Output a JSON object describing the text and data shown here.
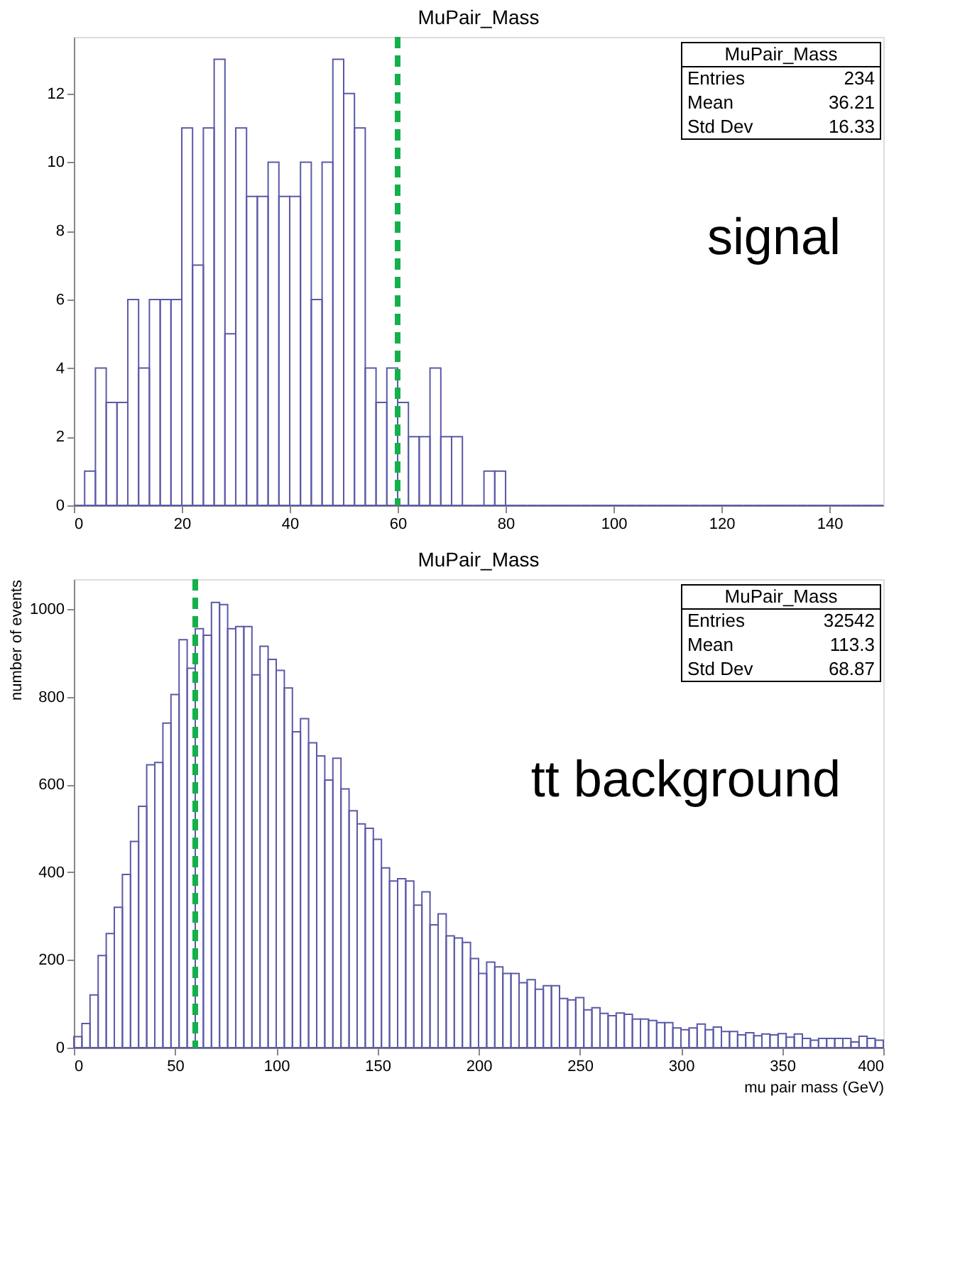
{
  "chart_data": [
    {
      "type": "histogram",
      "title": "MuPair_Mass",
      "color": "#5a5aa8",
      "bins": [
        0,
        2,
        4,
        6,
        8,
        10,
        12,
        14,
        16,
        18,
        20,
        22,
        24,
        26,
        28,
        30,
        32,
        34,
        36,
        38,
        40,
        42,
        44,
        46,
        48,
        50,
        52,
        54,
        56,
        58,
        60,
        62,
        64,
        66,
        68,
        70,
        72,
        74,
        76,
        78,
        80,
        82,
        84,
        86,
        88,
        90,
        92,
        94,
        96,
        98,
        100,
        102,
        104,
        106,
        108,
        110,
        112,
        114,
        116,
        118,
        120,
        122,
        124,
        126,
        128,
        130,
        132,
        134,
        136,
        138,
        140,
        142,
        144,
        146,
        148,
        150
      ],
      "values": [
        0,
        1,
        4,
        3,
        3,
        6,
        4,
        6,
        6,
        6,
        11,
        7,
        11,
        13,
        5,
        11,
        9,
        9,
        10,
        9,
        9,
        10,
        6,
        10,
        13,
        12,
        11,
        4,
        3,
        4,
        3,
        2,
        2,
        4,
        2,
        2,
        0,
        0,
        1,
        1,
        0,
        0,
        0,
        0,
        0,
        0,
        0,
        0,
        0,
        0,
        0,
        0,
        0,
        0,
        0,
        0,
        0,
        0,
        0,
        0,
        0,
        0,
        0,
        0,
        0,
        0,
        0,
        0,
        0,
        0,
        0,
        0,
        0,
        0,
        0
      ],
      "xlim": [
        0,
        150
      ],
      "ylim": [
        0,
        13.65
      ],
      "xticks": [
        0,
        20,
        40,
        60,
        80,
        100,
        120,
        140
      ],
      "yticks": [
        0,
        2,
        4,
        6,
        8,
        10,
        12
      ],
      "ref_lines": [
        {
          "axis": "x",
          "value": 60,
          "color": "#14b04a",
          "line_style": "dashed"
        }
      ],
      "annotations": [
        "signal",
        "MuPair_Mass",
        "Entries",
        "234",
        "Mean",
        "36.21",
        "Std Dev",
        "16.33"
      ]
    },
    {
      "type": "histogram",
      "title": "MuPair_Mass",
      "color": "#5a5aa8",
      "xlabel": "mu pair mass (GeV)",
      "ylabel": "number of events",
      "bins": [
        0,
        4,
        8,
        12,
        16,
        20,
        24,
        28,
        32,
        36,
        40,
        44,
        48,
        52,
        56,
        60,
        64,
        68,
        72,
        76,
        80,
        84,
        88,
        92,
        96,
        100,
        104,
        108,
        112,
        116,
        120,
        124,
        128,
        132,
        136,
        140,
        144,
        148,
        152,
        156,
        160,
        164,
        168,
        172,
        176,
        180,
        184,
        188,
        192,
        196,
        200,
        204,
        208,
        212,
        216,
        220,
        224,
        228,
        232,
        236,
        240,
        244,
        248,
        252,
        256,
        260,
        264,
        268,
        272,
        276,
        280,
        284,
        288,
        292,
        296,
        300,
        304,
        308,
        312,
        316,
        320,
        324,
        328,
        332,
        336,
        340,
        344,
        348,
        352,
        356,
        360,
        364,
        368,
        372,
        376,
        380,
        384,
        388,
        392,
        396,
        400
      ],
      "values": [
        25,
        55,
        120,
        210,
        260,
        320,
        395,
        470,
        550,
        645,
        650,
        740,
        805,
        930,
        865,
        955,
        940,
        1015,
        1010,
        955,
        960,
        960,
        850,
        915,
        885,
        860,
        820,
        720,
        750,
        695,
        665,
        610,
        660,
        590,
        540,
        510,
        500,
        475,
        410,
        380,
        385,
        380,
        325,
        355,
        280,
        305,
        255,
        250,
        240,
        203,
        169,
        195,
        184,
        169,
        169,
        148,
        155,
        133,
        141,
        141,
        112,
        109,
        114,
        86,
        91,
        78,
        73,
        79,
        76,
        65,
        65,
        62,
        57,
        57,
        45,
        41,
        45,
        54,
        41,
        47,
        37,
        37,
        29,
        34,
        27,
        31,
        29,
        32,
        24,
        31,
        21,
        17,
        21,
        21,
        21,
        21,
        13,
        26,
        21,
        17
      ],
      "xlim": [
        0,
        400
      ],
      "ylim": [
        0,
        1068
      ],
      "xticks": [
        0,
        50,
        100,
        150,
        200,
        250,
        300,
        350,
        400
      ],
      "yticks": [
        0,
        200,
        400,
        600,
        800,
        1000
      ],
      "ref_lines": [
        {
          "axis": "x",
          "value": 60,
          "color": "#14b04a",
          "line_style": "dashed"
        }
      ],
      "annotations": [
        "tt background",
        "MuPair_Mass",
        "Entries",
        "32542",
        "Mean",
        "113.3",
        "Std Dev",
        "68.87"
      ]
    }
  ]
}
